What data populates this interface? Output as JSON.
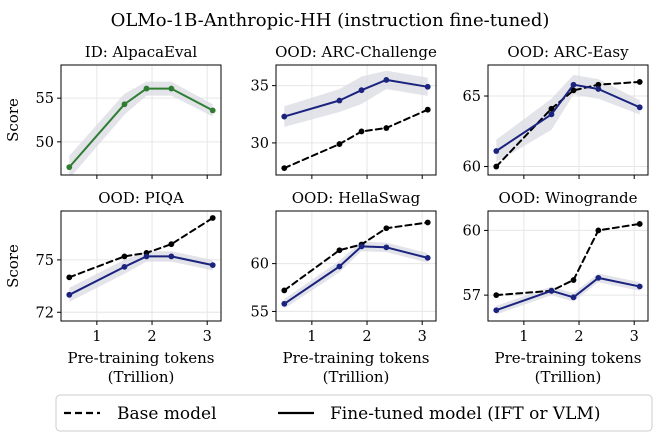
{
  "figure": {
    "suptitle": "OLMo-1B-Anthropic-HH (instruction fine-tuned)",
    "colors": {
      "base": "#000000",
      "finetuned_blue": "#1a237e",
      "finetuned_green": "#2e7d32",
      "band": "#d9d9e3",
      "grid": "#e6e6e6"
    },
    "legend": {
      "base_label": "Base model",
      "finetuned_label": "Fine-tuned model (IFT or VLM)"
    }
  },
  "chart_data": [
    {
      "type": "line",
      "title": "ID: AlpacaEval",
      "xlabel": "",
      "ylabel": "Score",
      "xlim": [
        0.35,
        3.25
      ],
      "ylim": [
        46.2,
        58.8
      ],
      "xticks": [
        1,
        2,
        3
      ],
      "yticks": [
        50,
        55
      ],
      "show_xtick_labels": false,
      "series": [
        {
          "name": "Fine-tuned model (IFT or VLM)",
          "style": "solid",
          "color": "#2e7d32",
          "x": [
            0.5,
            1.5,
            1.9,
            2.35,
            3.1
          ],
          "y": [
            47.1,
            54.3,
            56.1,
            56.1,
            53.6
          ],
          "band": [
            1.3,
            1.2,
            0.8,
            0.8,
            0.7
          ]
        }
      ]
    },
    {
      "type": "line",
      "title": "OOD: ARC-Challenge",
      "xlabel": "",
      "ylabel": "",
      "xlim": [
        0.35,
        3.25
      ],
      "ylim": [
        27.2,
        36.8
      ],
      "xticks": [
        1,
        2,
        3
      ],
      "yticks": [
        30,
        35
      ],
      "show_xtick_labels": false,
      "series": [
        {
          "name": "Base model",
          "style": "dashed",
          "color": "#000000",
          "x": [
            0.5,
            1.5,
            1.9,
            2.35,
            3.1
          ],
          "y": [
            27.8,
            29.9,
            31.0,
            31.3,
            32.9
          ]
        },
        {
          "name": "Fine-tuned model (IFT or VLM)",
          "style": "solid",
          "color": "#1a237e",
          "x": [
            0.5,
            1.5,
            1.9,
            2.35,
            3.1
          ],
          "y": [
            32.3,
            33.7,
            34.6,
            35.5,
            34.9
          ],
          "band": [
            0.9,
            1.0,
            1.2,
            0.8,
            0.8
          ]
        }
      ]
    },
    {
      "type": "line",
      "title": "OOD: ARC-Easy",
      "xlabel": "",
      "ylabel": "",
      "xlim": [
        0.35,
        3.25
      ],
      "ylim": [
        59.4,
        67.2
      ],
      "xticks": [
        1,
        2,
        3
      ],
      "yticks": [
        60,
        65
      ],
      "show_xtick_labels": false,
      "series": [
        {
          "name": "Base model",
          "style": "dashed",
          "color": "#000000",
          "x": [
            0.5,
            1.5,
            1.9,
            2.35,
            3.1
          ],
          "y": [
            60.0,
            64.1,
            65.4,
            65.8,
            66.0
          ]
        },
        {
          "name": "Fine-tuned model (IFT or VLM)",
          "style": "solid",
          "color": "#1a237e",
          "x": [
            0.5,
            1.5,
            1.9,
            2.35,
            3.1
          ],
          "y": [
            61.1,
            63.7,
            65.8,
            65.5,
            64.2
          ],
          "band": [
            0.8,
            1.1,
            0.7,
            0.7,
            0.5
          ]
        }
      ]
    },
    {
      "type": "line",
      "title": "OOD: PIQA",
      "xlabel": "Pre-training tokens\n(Trillion)",
      "ylabel": "Score",
      "xlim": [
        0.35,
        3.25
      ],
      "ylim": [
        71.5,
        77.8
      ],
      "xticks": [
        1,
        2,
        3
      ],
      "yticks": [
        72,
        75
      ],
      "show_xtick_labels": true,
      "series": [
        {
          "name": "Base model",
          "style": "dashed",
          "color": "#000000",
          "x": [
            0.5,
            1.5,
            1.9,
            2.35,
            3.1
          ],
          "y": [
            74.0,
            75.2,
            75.4,
            75.9,
            77.4
          ]
        },
        {
          "name": "Fine-tuned model (IFT or VLM)",
          "style": "solid",
          "color": "#1a237e",
          "x": [
            0.5,
            1.5,
            1.9,
            2.35,
            3.1
          ],
          "y": [
            73.0,
            74.6,
            75.2,
            75.2,
            74.7
          ],
          "band": [
            0.4,
            0.4,
            0.3,
            0.3,
            0.3
          ]
        }
      ]
    },
    {
      "type": "line",
      "title": "OOD: HellaSwag",
      "xlabel": "Pre-training tokens\n(Trillion)",
      "ylabel": "",
      "xlim": [
        0.35,
        3.25
      ],
      "ylim": [
        54.0,
        65.5
      ],
      "xticks": [
        1,
        2,
        3
      ],
      "yticks": [
        55,
        60
      ],
      "show_xtick_labels": true,
      "series": [
        {
          "name": "Base model",
          "style": "dashed",
          "color": "#000000",
          "x": [
            0.5,
            1.5,
            1.9,
            2.35,
            3.1
          ],
          "y": [
            57.2,
            61.4,
            62.0,
            63.7,
            64.3
          ]
        },
        {
          "name": "Fine-tuned model (IFT or VLM)",
          "style": "solid",
          "color": "#1a237e",
          "x": [
            0.5,
            1.5,
            1.9,
            2.35,
            3.1
          ],
          "y": [
            55.8,
            59.7,
            61.8,
            61.7,
            60.6
          ],
          "band": [
            0.5,
            0.6,
            0.5,
            0.5,
            0.5
          ]
        }
      ]
    },
    {
      "type": "line",
      "title": "OOD: Winogrande",
      "xlabel": "Pre-training tokens\n(Trillion)",
      "ylabel": "",
      "xlim": [
        0.35,
        3.25
      ],
      "ylim": [
        55.8,
        60.9
      ],
      "xticks": [
        1,
        2,
        3
      ],
      "yticks": [
        57,
        60
      ],
      "show_xtick_labels": true,
      "series": [
        {
          "name": "Base model",
          "style": "dashed",
          "color": "#000000",
          "x": [
            0.5,
            1.5,
            1.9,
            2.35,
            3.1
          ],
          "y": [
            57.0,
            57.2,
            57.7,
            60.0,
            60.3
          ]
        },
        {
          "name": "Fine-tuned model (IFT or VLM)",
          "style": "solid",
          "color": "#1a237e",
          "x": [
            0.5,
            1.5,
            1.9,
            2.35,
            3.1
          ],
          "y": [
            56.3,
            57.2,
            56.9,
            57.8,
            57.4
          ],
          "band": [
            0.2,
            0.2,
            0.2,
            0.2,
            0.2
          ]
        }
      ]
    }
  ]
}
